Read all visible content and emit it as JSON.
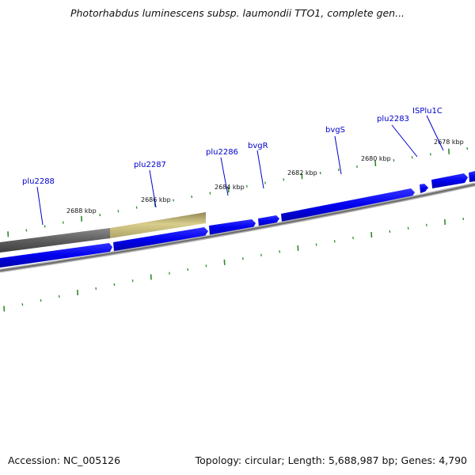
{
  "title": "Photorhabdus luminescens subsp. laumondii TTO1, complete gen...",
  "footer": {
    "accession": "Accession: NC_005126",
    "summary": "Topology: circular; Length: 5,688,987 bp; Genes: 4,790"
  },
  "colors": {
    "forward_gene": "#0000ee",
    "reverse_gene": "#0000ee",
    "backbone": "#808080",
    "region_dark": "#666666",
    "region_highlight": "#c8bc78",
    "tick": "#2e8b2e",
    "label": "#0000cc"
  },
  "scale_labels": [
    "2678 kbp",
    "2680 kbp",
    "2682 kbp",
    "2684 kbp",
    "2686 kbp",
    "2688 kbp"
  ],
  "genes": [
    {
      "name": "ISPlu1C"
    },
    {
      "name": "plu2283"
    },
    {
      "name": "bvgS"
    },
    {
      "name": "bvgR"
    },
    {
      "name": "plu2286"
    },
    {
      "name": "plu2287"
    },
    {
      "name": "plu2288"
    }
  ]
}
